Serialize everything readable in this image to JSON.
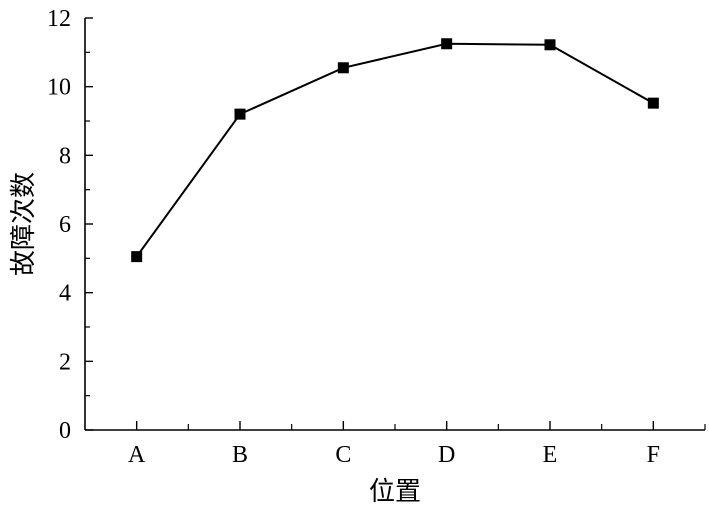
{
  "chart_data": {
    "type": "line",
    "title": "",
    "xlabel": "位置",
    "ylabel": "故障次数",
    "categories": [
      "A",
      "B",
      "C",
      "D",
      "E",
      "F"
    ],
    "values": [
      5.05,
      9.2,
      10.55,
      11.25,
      11.22,
      9.52
    ],
    "ylim": [
      0,
      12
    ],
    "yticks": [
      "0",
      "2",
      "4",
      "6",
      "8",
      "10",
      "12"
    ],
    "grid": false,
    "marker": "square",
    "line_color": "#000000",
    "marker_color": "#000000"
  }
}
